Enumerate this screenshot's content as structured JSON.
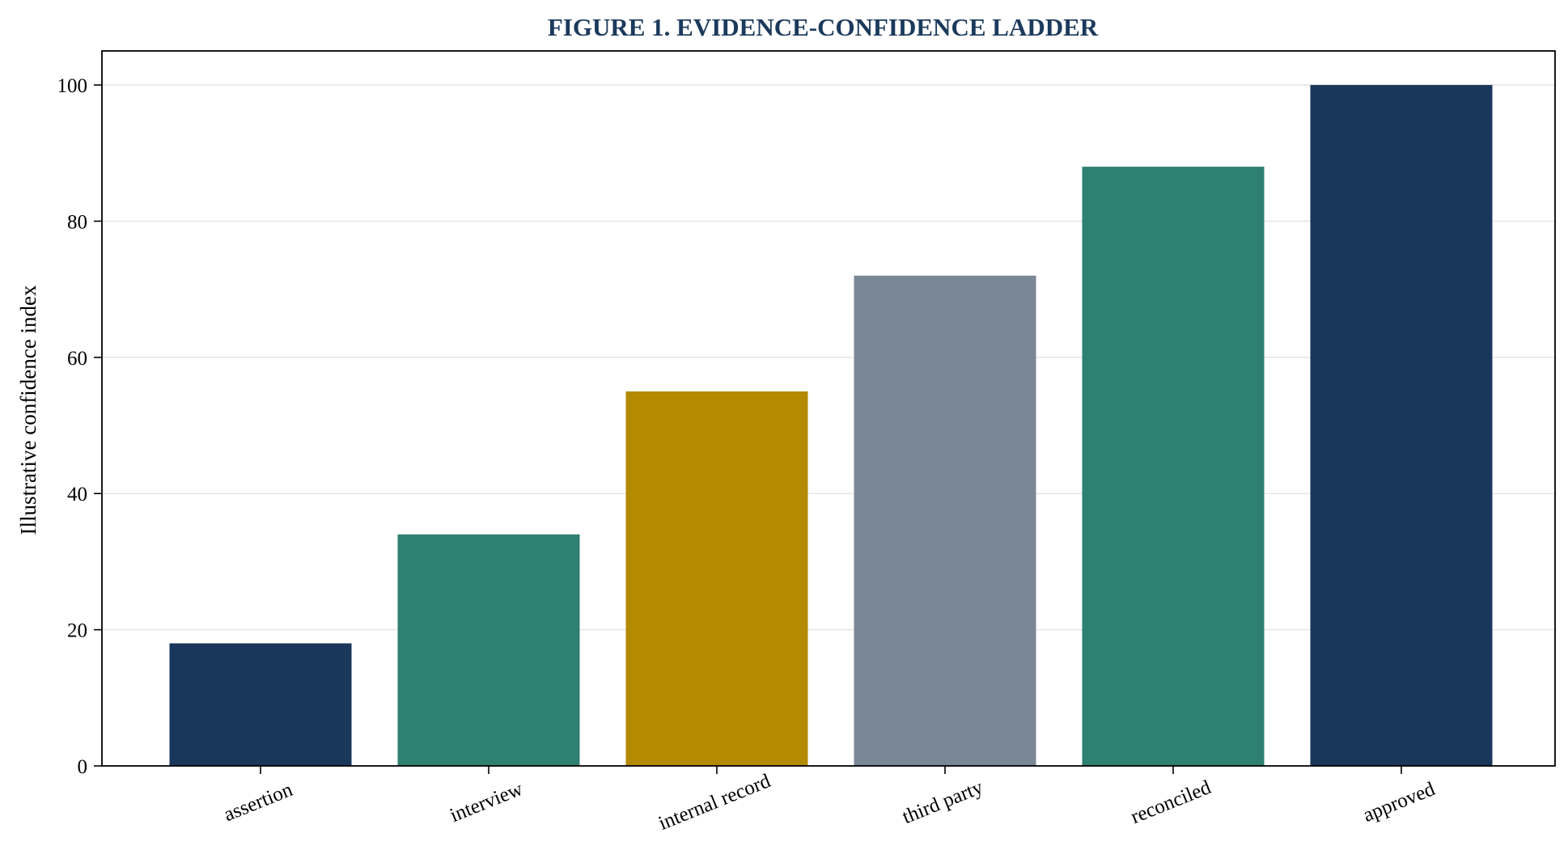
{
  "chart_data": {
    "type": "bar",
    "title": "FIGURE 1. EVIDENCE-CONFIDENCE LADDER",
    "xlabel": "",
    "ylabel": "Illustrative confidence index",
    "categories": [
      "assertion",
      "interview",
      "internal record",
      "third party",
      "reconciled",
      "approved"
    ],
    "values": [
      18,
      34,
      55,
      72,
      88,
      100
    ],
    "colors": [
      "#19365b",
      "#2e8070",
      "#b38a00",
      "#7a8795",
      "#2e8070",
      "#19365b"
    ],
    "ylim": [
      0,
      105
    ],
    "yticks": [
      0,
      20,
      40,
      60,
      80,
      100
    ],
    "grid": true
  }
}
